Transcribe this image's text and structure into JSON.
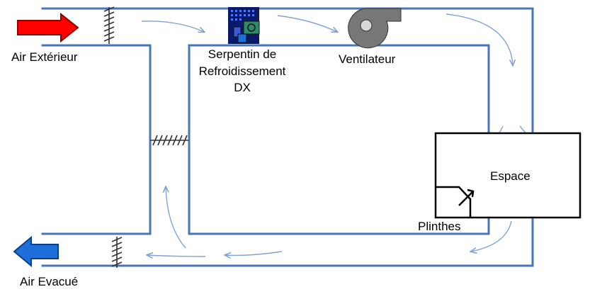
{
  "labels": {
    "outside_air": "Air Extérieur",
    "exhaust_air": "Air Evacué",
    "coil_line1": "Serpentin de",
    "coil_line2": "Refroidissement",
    "coil_line3": "DX",
    "fan": "Ventilateur",
    "space": "Espace",
    "baseboards": "Plinthes"
  },
  "colors": {
    "duct": "#4a76b8",
    "flow_arrow": "#7ea3d4",
    "outside_air_arrow": "#ff0000",
    "exhaust_air_arrow": "#1e6fd9",
    "damper": "#333333",
    "space_outline": "#000000"
  },
  "icons": {
    "outside_air_arrow": "right-arrow-icon",
    "exhaust_air_arrow": "left-arrow-icon",
    "coil": "cooling-coil-icon",
    "fan": "centrifugal-fan-icon",
    "baseboard": "baseboard-heater-icon"
  }
}
